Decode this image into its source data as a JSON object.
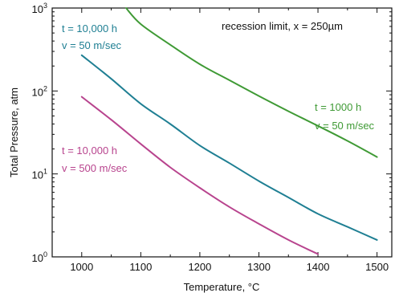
{
  "chart_data": {
    "type": "line",
    "xlabel": "Temperature, °C",
    "ylabel": "Total Pressure, atm",
    "xlim": [
      950,
      1525
    ],
    "ylim": [
      1,
      1000
    ],
    "yscale": "log",
    "grid": false,
    "x_ticks": [
      "1000",
      "1100",
      "1200",
      "1300",
      "1400",
      "1500"
    ],
    "x_tick_values": [
      1000,
      1100,
      1200,
      1300,
      1400,
      1500
    ],
    "y_tick_values": [
      1,
      10,
      100,
      1000
    ],
    "y_ticks": [
      {
        "base": "10",
        "exp": "0"
      },
      {
        "base": "10",
        "exp": "1"
      },
      {
        "base": "10",
        "exp": "2"
      },
      {
        "base": "10",
        "exp": "3"
      }
    ],
    "header_annotation": "recession limit, x = 250µm",
    "series": [
      {
        "label_lines": [
          "t = 1000 h",
          "v = 50 m/sec"
        ],
        "color": "#3f9a35",
        "x": [
          1075,
          1100,
          1150,
          1200,
          1250,
          1300,
          1350,
          1400,
          1450,
          1500
        ],
        "y": [
          1000,
          640,
          360,
          210,
          135,
          87,
          57,
          38,
          25,
          16
        ]
      },
      {
        "label_lines": [
          "t = 10,000 h",
          "v = 50 m/sec"
        ],
        "color": "#1f7f93",
        "x": [
          1000,
          1050,
          1100,
          1150,
          1200,
          1250,
          1300,
          1350,
          1400,
          1450,
          1500
        ],
        "y": [
          270,
          140,
          70,
          40,
          22,
          13.5,
          8.2,
          5.2,
          3.3,
          2.3,
          1.6
        ]
      },
      {
        "label_lines": [
          "t = 10,000 h",
          "v = 500 m/sec"
        ],
        "color": "#b8448e",
        "x": [
          1000,
          1050,
          1100,
          1150,
          1200,
          1250,
          1300,
          1350,
          1400
        ],
        "y": [
          85,
          45,
          23,
          12,
          6.8,
          4.0,
          2.5,
          1.6,
          1.08
        ]
      }
    ]
  }
}
